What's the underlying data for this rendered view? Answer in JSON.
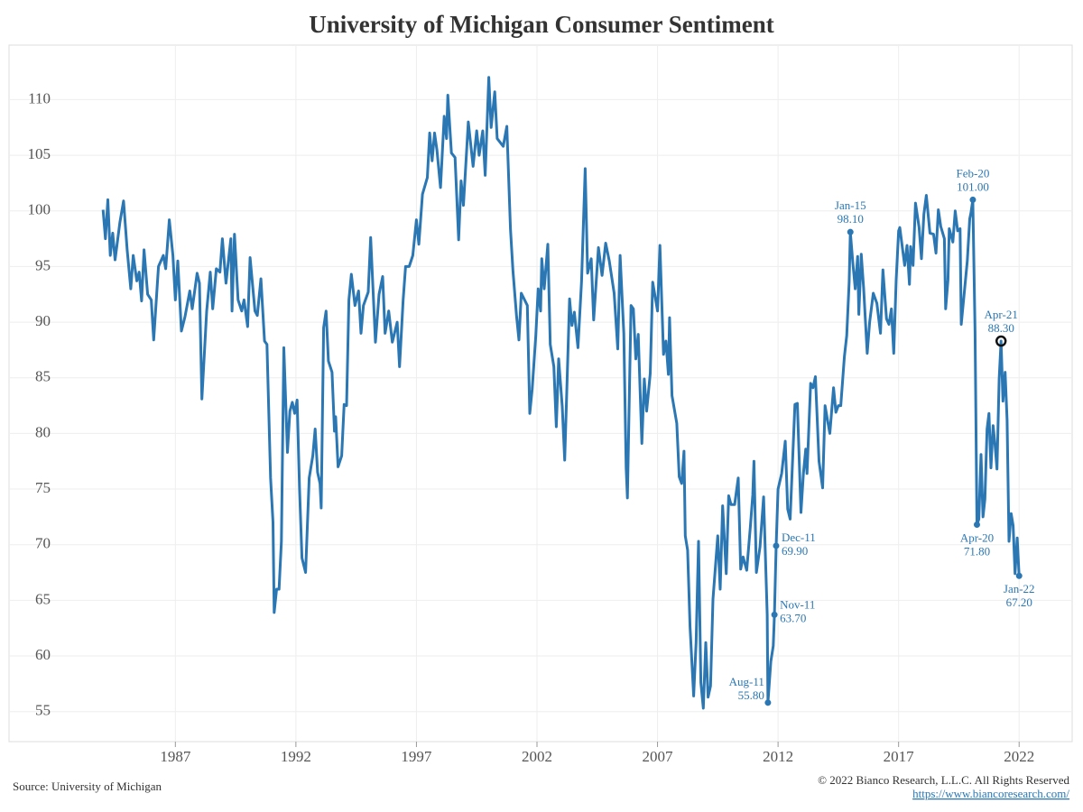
{
  "chart_data": {
    "type": "line",
    "title": "University of Michigan Consumer Sentiment",
    "source": "Source: University of Michigan",
    "copyright": "© 2022 Bianco Research, L.L.C. All Rights Reserved",
    "url": "https://www.biancoresearch.com/",
    "color": "#2a77b4",
    "grid": true,
    "xlim": [
      1980.1,
      2024.2
    ],
    "xticks": [
      1987,
      1992,
      1997,
      2002,
      2007,
      2012,
      2017,
      2022
    ],
    "ylim": [
      52.3,
      114.9
    ],
    "yticks": [
      55,
      60,
      65,
      70,
      75,
      80,
      85,
      90,
      95,
      100,
      105,
      110
    ],
    "x": [
      1984.0,
      1984.1,
      1984.2,
      1984.3,
      1984.4,
      1984.5,
      1984.7,
      1984.85,
      1985.0,
      1985.15,
      1985.25,
      1985.4,
      1985.5,
      1985.6,
      1985.7,
      1985.85,
      1986.0,
      1986.1,
      1986.3,
      1986.5,
      1986.6,
      1986.75,
      1986.9,
      1987.0,
      1987.1,
      1987.25,
      1987.4,
      1987.6,
      1987.7,
      1987.9,
      1988.0,
      1988.1,
      1988.3,
      1988.45,
      1988.55,
      1988.7,
      1988.85,
      1988.95,
      1989.1,
      1989.3,
      1989.35,
      1989.45,
      1989.6,
      1989.75,
      1989.85,
      1990.0,
      1990.1,
      1990.3,
      1990.4,
      1990.55,
      1990.7,
      1990.8,
      1990.95,
      1991.05,
      1991.1,
      1991.2,
      1991.3,
      1991.4,
      1991.5,
      1991.65,
      1991.75,
      1991.85,
      1991.95,
      1992.05,
      1992.15,
      1992.25,
      1992.4,
      1992.55,
      1992.7,
      1992.8,
      1992.9,
      1993.0,
      1993.05,
      1993.15,
      1993.25,
      1993.35,
      1993.5,
      1993.6,
      1993.65,
      1993.75,
      1993.9,
      1994.0,
      1994.1,
      1994.2,
      1994.3,
      1994.45,
      1994.6,
      1994.7,
      1994.8,
      1995.0,
      1995.1,
      1995.3,
      1995.45,
      1995.6,
      1995.7,
      1995.85,
      1996.0,
      1996.2,
      1996.3,
      1996.45,
      1996.55,
      1996.7,
      1996.85,
      1997.0,
      1997.1,
      1997.25,
      1997.45,
      1997.55,
      1997.65,
      1997.75,
      1997.85,
      1998.0,
      1998.15,
      1998.25,
      1998.3,
      1998.45,
      1998.6,
      1998.75,
      1998.85,
      1998.95,
      1999.15,
      1999.35,
      1999.5,
      1999.6,
      1999.75,
      1999.85,
      2000.0,
      2000.1,
      2000.25,
      2000.35,
      2000.6,
      2000.75,
      2000.9,
      2001.0,
      2001.15,
      2001.25,
      2001.35,
      2001.6,
      2001.7,
      2001.8,
      2001.95,
      2002.05,
      2002.15,
      2002.2,
      2002.3,
      2002.45,
      2002.55,
      2002.7,
      2002.8,
      2002.9,
      2003.05,
      2003.15,
      2003.35,
      2003.45,
      2003.55,
      2003.7,
      2003.85,
      2004.0,
      2004.1,
      2004.25,
      2004.35,
      2004.55,
      2004.7,
      2004.85,
      2005.0,
      2005.2,
      2005.35,
      2005.45,
      2005.6,
      2005.7,
      2005.75,
      2005.9,
      2006.0,
      2006.1,
      2006.2,
      2006.35,
      2006.45,
      2006.55,
      2006.7,
      2006.8,
      2007.0,
      2007.1,
      2007.25,
      2007.35,
      2007.45,
      2007.5,
      2007.6,
      2007.8,
      2007.9,
      2008.0,
      2008.1,
      2008.15,
      2008.25,
      2008.35,
      2008.5,
      2008.6,
      2008.7,
      2008.8,
      2008.9,
      2009.0,
      2009.1,
      2009.2,
      2009.3,
      2009.5,
      2009.6,
      2009.7,
      2009.85,
      2009.95,
      2010.05,
      2010.2,
      2010.35,
      2010.45,
      2010.55,
      2010.7,
      2010.85,
      2010.95,
      2011.0,
      2011.1,
      2011.25,
      2011.4,
      2011.55,
      2011.58,
      2011.7,
      2011.8,
      2011.85,
      2011.92,
      2012.0,
      2012.15,
      2012.3,
      2012.4,
      2012.5,
      2012.7,
      2012.8,
      2012.95,
      2013.05,
      2013.15,
      2013.2,
      2013.35,
      2013.45,
      2013.55,
      2013.7,
      2013.85,
      2013.95,
      2014.05,
      2014.15,
      2014.3,
      2014.4,
      2014.5,
      2014.6,
      2014.75,
      2014.85,
      2014.95,
      2015.0,
      2015.1,
      2015.2,
      2015.3,
      2015.35,
      2015.45,
      2015.55,
      2015.7,
      2015.8,
      2015.95,
      2016.1,
      2016.25,
      2016.35,
      2016.5,
      2016.6,
      2016.7,
      2016.8,
      2016.9,
      2017.0,
      2017.05,
      2017.25,
      2017.35,
      2017.45,
      2017.5,
      2017.6,
      2017.7,
      2017.85,
      2017.95,
      2018.05,
      2018.15,
      2018.3,
      2018.45,
      2018.55,
      2018.65,
      2018.75,
      2018.9,
      2018.95,
      2019.05,
      2019.1,
      2019.25,
      2019.35,
      2019.45,
      2019.55,
      2019.6,
      2019.75,
      2019.85,
      2019.95,
      2020.0,
      2020.08,
      2020.17,
      2020.25,
      2020.33,
      2020.42,
      2020.5,
      2020.58,
      2020.67,
      2020.75,
      2020.83,
      2020.92,
      2021.0,
      2021.08,
      2021.17,
      2021.25,
      2021.33,
      2021.42,
      2021.5,
      2021.58,
      2021.67,
      2021.75,
      2021.83,
      2021.92,
      2022.0
    ],
    "values": [
      100.1,
      97.5,
      101,
      96,
      98,
      95.6,
      99,
      100.9,
      96.5,
      93,
      96,
      93.7,
      94.5,
      91.9,
      96.5,
      92.5,
      92,
      88.4,
      95,
      96,
      94.8,
      99.2,
      96,
      92,
      95.5,
      89.2,
      90.5,
      92.8,
      91.2,
      94.4,
      93.5,
      83.1,
      91,
      94.5,
      91.2,
      94.8,
      94.5,
      97.5,
      93.5,
      97.5,
      91,
      97.9,
      92,
      91,
      92,
      89.6,
      95.8,
      91,
      90.6,
      93.9,
      88.3,
      88,
      76,
      72,
      63.9,
      66,
      66,
      70.3,
      87.7,
      78.3,
      82,
      82.8,
      81.8,
      83,
      75,
      68.8,
      67.5,
      76,
      78,
      80.4,
      76.5,
      75.5,
      73.3,
      89.5,
      91,
      86.5,
      85.5,
      80.2,
      81.5,
      77,
      78,
      82.6,
      82.5,
      92,
      94.3,
      91.5,
      92.8,
      89,
      91.5,
      92.7,
      97.6,
      88.2,
      92.5,
      94.1,
      89,
      91,
      88.2,
      90,
      86,
      92,
      95,
      95,
      96,
      99.2,
      97,
      101.5,
      103,
      107,
      104.5,
      107,
      105.5,
      102.1,
      108.5,
      106.5,
      110.4,
      105.2,
      104.8,
      97.4,
      102.7,
      100.5,
      108,
      104,
      107.2,
      105,
      107.2,
      103.2,
      112,
      107.5,
      110.7,
      106.5,
      105.8,
      107.6,
      98.4,
      94.7,
      90.6,
      88.4,
      92.6,
      91.5,
      81.8,
      84,
      88.8,
      93,
      91,
      95.7,
      93,
      97,
      88,
      86,
      80.6,
      86.7,
      82.4,
      77.6,
      92.1,
      89.7,
      90.9,
      87.7,
      93.7,
      103.8,
      94.4,
      95.7,
      90.2,
      96.7,
      94.2,
      97.1,
      95.5,
      92.6,
      87.6,
      96,
      89,
      76.9,
      74.2,
      91.5,
      91.2,
      86.7,
      88.9,
      79.1,
      84.9,
      82,
      85.4,
      93.6,
      91,
      96.9,
      87.1,
      88.3,
      85.3,
      90.4,
      83.4,
      80.9,
      76.1,
      75.5,
      78.4,
      70.8,
      69.5,
      62.6,
      56.4,
      61.2,
      70.3,
      57.6,
      55.3,
      61.2,
      56.3,
      57.3,
      65.1,
      70.8,
      66,
      73.5,
      67.4,
      74.4,
      73.6,
      73.6,
      76,
      67.8,
      68.9,
      67.7,
      71.6,
      74.5,
      77.5,
      67.5,
      69.8,
      74.3,
      63.7,
      55.8,
      59.5,
      60.9,
      63.7,
      69.9,
      75,
      76.4,
      79.3,
      73.2,
      72.3,
      82.6,
      82.7,
      72.9,
      76.4,
      78.6,
      76.4,
      84.5,
      84.1,
      85.1,
      77.5,
      75.1,
      82.5,
      81.2,
      80,
      84.1,
      81.9,
      82.5,
      82.5,
      86.9,
      88.8,
      93.6,
      98.1,
      95.4,
      93,
      95.9,
      90.7,
      96.1,
      93.1,
      87.2,
      90,
      92.6,
      91.7,
      89,
      94.7,
      90.3,
      89.8,
      91.2,
      87.2,
      93.8,
      98.2,
      98.5,
      95.1,
      96.9,
      93.4,
      96.8,
      95.1,
      100.7,
      98.5,
      95.7,
      99.7,
      101.4,
      98,
      97.9,
      96.2,
      100.1,
      98.6,
      97.5,
      91.2,
      93.8,
      98.4,
      97.2,
      100,
      98.2,
      98.4,
      89.8,
      93.2,
      95.5,
      99.3,
      99.8,
      101.0,
      89.1,
      71.8,
      72.3,
      78.1,
      72.5,
      74.1,
      80.4,
      81.8,
      76.9,
      80.7,
      79,
      76.8,
      84.9,
      88.3,
      82.9,
      85.5,
      81.2,
      70.3,
      72.8,
      71.7,
      67.4,
      70.6,
      67.2
    ],
    "annotations": [
      {
        "date": "Aug-11",
        "label": "55.80",
        "x": 2011.58,
        "value": 55.8
      },
      {
        "date": "Nov-11",
        "label": "63.70",
        "x": 2011.85,
        "value": 63.7
      },
      {
        "date": "Dec-11",
        "label": "69.90",
        "x": 2011.92,
        "value": 69.9
      },
      {
        "date": "Jan-15",
        "label": "98.10",
        "x": 2015.0,
        "value": 98.1
      },
      {
        "date": "Feb-20",
        "label": "101.00",
        "x": 2020.08,
        "value": 101.0
      },
      {
        "date": "Apr-20",
        "label": "71.80",
        "x": 2020.25,
        "value": 71.8
      },
      {
        "date": "Apr-21",
        "label": "88.30",
        "x": 2021.25,
        "value": 88.3
      },
      {
        "date": "Jan-22",
        "label": "67.20",
        "x": 2022.0,
        "value": 67.2
      }
    ]
  }
}
